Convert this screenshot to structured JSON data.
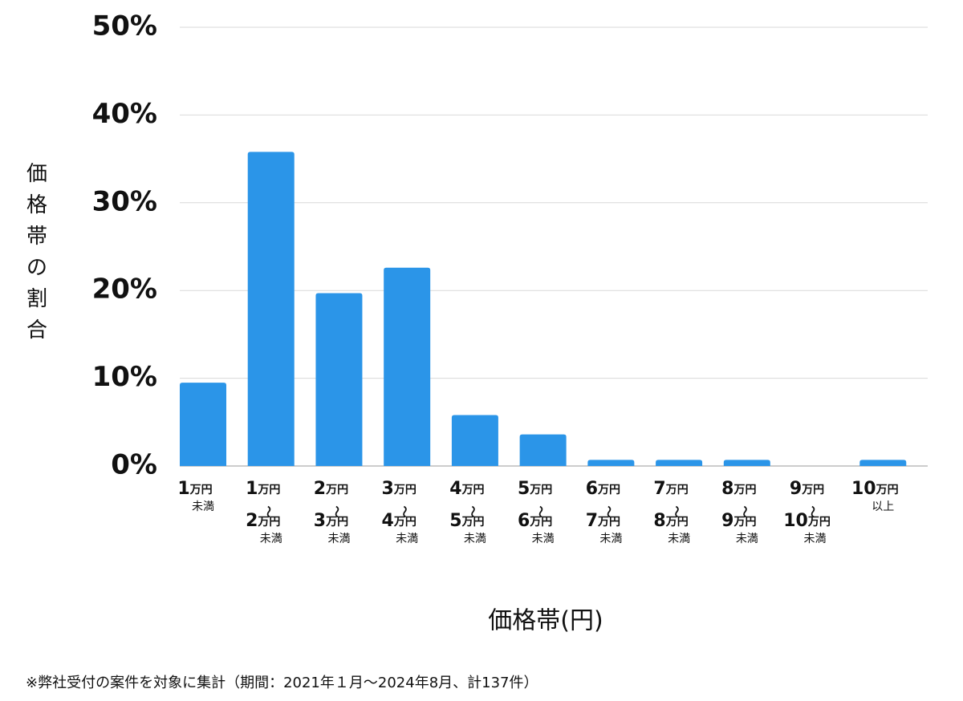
{
  "chart_data": {
    "type": "bar",
    "y_axis_label": "価格帯の割合",
    "x_axis_label": "価格帯(円)",
    "footnote": "※弊社受付の案件を対象に集計（期間：2021年１月〜2024年8月、計137件）",
    "categories": [
      "1万円未満",
      "1万円〜2万円未満",
      "2万円〜3万円未満",
      "3万円〜4万円未満",
      "4万円〜5万円未満",
      "5万円〜6万円未満",
      "6万円〜7万円未満",
      "7万円〜8万円未満",
      "8万円〜9万円未満",
      "9万円〜10万円未満",
      "10万円以上"
    ],
    "values": [
      9.5,
      35.8,
      19.7,
      22.6,
      5.8,
      3.6,
      0.7,
      0.7,
      0.7,
      0,
      0.7
    ],
    "color": "#2b95e8",
    "ylim": [
      0,
      50
    ],
    "yticks": [
      {
        "value": 0,
        "label": "0%"
      },
      {
        "value": 10,
        "label": "10%"
      },
      {
        "value": 20,
        "label": "20%"
      },
      {
        "value": 30,
        "label": "30%"
      },
      {
        "value": 40,
        "label": "40%"
      },
      {
        "value": 50,
        "label": "50%"
      }
    ],
    "grid": true
  }
}
